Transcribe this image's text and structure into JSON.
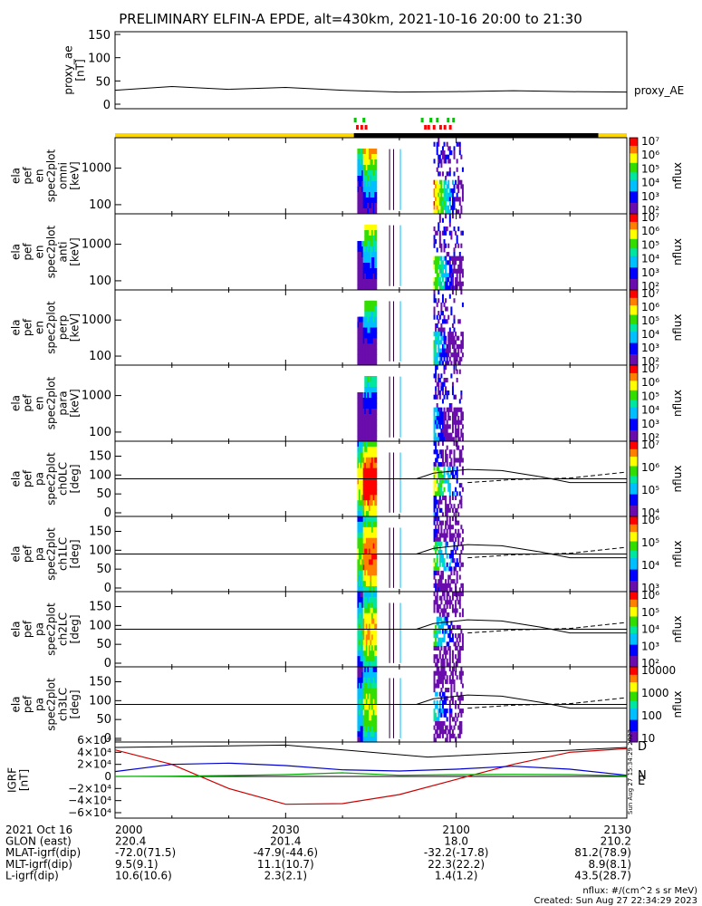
{
  "title": "PRELIMINARY ELFIN-A EPDE, alt=430km, 2021-10-16 20:00 to 21:30",
  "colors": {
    "axis": "#000000",
    "sunlit_bar": "#ffd700",
    "eclipse_bar": "#000000",
    "flag_green": "#00c800",
    "flag_red": "#ff0000",
    "bfield_D": "#cc0000",
    "bfield_N": "#0000cc",
    "bfield_E": "#00aa00"
  },
  "time_axis": {
    "start": "2000",
    "end": "2130",
    "tick_labels": [
      "2000",
      "2030",
      "2100",
      "2130"
    ]
  },
  "proxy_ae": {
    "ylabel": "proxy_ae\n[nT]",
    "yticks": [
      "0",
      "50",
      "100",
      "150"
    ],
    "label": "proxy_AE"
  },
  "status_bar": {
    "green_flags": [
      0.0,
      0.08,
      0.62,
      0.7,
      0.76,
      0.86,
      0.91
    ],
    "red_flags": [
      0.02,
      0.06,
      0.1,
      0.65,
      0.68,
      0.73,
      0.79,
      0.83,
      0.88
    ]
  },
  "energy_panels": [
    {
      "ylabel": "ela\npef\nen\nspec2plot\nomni\n[keV]",
      "yticks": [
        "100",
        "1000"
      ]
    },
    {
      "ylabel": "ela\npef\nen\nspec2plot\nanti\n[keV]",
      "yticks": [
        "100",
        "1000"
      ]
    },
    {
      "ylabel": "ela\npef\nen\nspec2plot\nperp\n[keV]",
      "yticks": [
        "100",
        "1000"
      ]
    },
    {
      "ylabel": "ela\npef\nen\nspec2plot\npara\n[keV]",
      "yticks": [
        "100",
        "1000"
      ]
    }
  ],
  "energy_colorbar": {
    "label": "nflux",
    "ticks": [
      "10²",
      "10³",
      "10⁴",
      "10⁵",
      "10⁶",
      "10⁷"
    ]
  },
  "pa_panels": [
    {
      "ylabel": "ela\npef\npa\nspec2plot\nch0LC\n[deg]",
      "yticks": [
        "0",
        "50",
        "100",
        "150"
      ],
      "cbar_ticks": [
        "10⁴",
        "10⁵",
        "10⁶",
        "10⁷"
      ]
    },
    {
      "ylabel": "ela\npef\npa\nspec2plot\nch1LC\n[deg]",
      "yticks": [
        "0",
        "50",
        "100",
        "150"
      ],
      "cbar_ticks": [
        "10³",
        "10⁴",
        "10⁵",
        "10⁶"
      ]
    },
    {
      "ylabel": "ela\npef\npa\nspec2plot\nch2LC\n[deg]",
      "yticks": [
        "0",
        "50",
        "100",
        "150"
      ],
      "cbar_ticks": [
        "10²",
        "10³",
        "10⁴",
        "10⁵",
        "10⁶"
      ]
    },
    {
      "ylabel": "ela\npef\npa\nspec2plot\nch3LC\n[deg]",
      "yticks": [
        "0",
        "50",
        "100",
        "150"
      ],
      "cbar_ticks": [
        "10",
        "100",
        "1000",
        "10000"
      ]
    }
  ],
  "pa_colorbar_label": "nflux",
  "bfield": {
    "ylabel": "IGRF\n[nT]",
    "yticks": [
      "6×10⁴",
      "4×10⁴",
      "2×10⁴",
      "0",
      "−2×10⁴",
      "−4×10⁴",
      "−6×10⁴"
    ],
    "legend": [
      "D",
      "N",
      "E"
    ],
    "side_stamp": "Sun Aug 27 15:34:29 2023"
  },
  "orbit_table": {
    "rows": [
      {
        "label": "2021 Oct 16",
        "values": [
          "2000",
          "2030",
          "2100",
          "2130"
        ]
      },
      {
        "label": "GLON (east)",
        "values": [
          "220.4",
          "201.4",
          "18.0",
          "210.2"
        ]
      },
      {
        "label": "MLAT-igrf(dip)",
        "values": [
          "-72.0(71.5)",
          "-47.9(-44.6)",
          "-32.2(-17.8)",
          "81.2(78.9)"
        ]
      },
      {
        "label": "MLT-igrf(dip)",
        "values": [
          "9.5(9.1)",
          "11.1(10.7)",
          "22.3(22.2)",
          "8.9(8.1)"
        ]
      },
      {
        "label": "L-igrf(dip)",
        "values": [
          "10.6(10.6)",
          "2.3(2.1)",
          "1.4(1.2)",
          "43.5(28.7)"
        ]
      }
    ]
  },
  "footer": {
    "units": "nflux: #/(cm^2 s sr MeV)",
    "created": "Created: Sun Aug 27 22:34:29 2023"
  },
  "chart_data": {
    "type": "heatmap",
    "title": "PRELIMINARY ELFIN-A EPDE, alt=430km, 2021-10-16 20:00 to 21:30",
    "x_range": [
      "20:00",
      "21:30"
    ],
    "series": [
      {
        "name": "proxy_AE",
        "x_minutes": [
          0,
          10,
          20,
          30,
          40,
          50,
          60,
          70,
          80,
          90
        ],
        "values": [
          30,
          38,
          32,
          36,
          30,
          26,
          27,
          29,
          27,
          26
        ],
        "ylim": [
          0,
          150
        ]
      },
      {
        "name": "D",
        "x_minutes": [
          0,
          10,
          20,
          30,
          40,
          50,
          60,
          70,
          80,
          90
        ],
        "values": [
          44000,
          20000,
          -20000,
          -46000,
          -45000,
          -30000,
          -5000,
          20000,
          40000,
          46000
        ]
      },
      {
        "name": "N",
        "x_minutes": [
          0,
          10,
          20,
          30,
          40,
          50,
          60,
          70,
          80,
          90
        ],
        "values": [
          8000,
          20000,
          22000,
          18000,
          11000,
          9000,
          12000,
          17000,
          12000,
          2000
        ]
      },
      {
        "name": "E",
        "x_minutes": [
          0,
          10,
          20,
          30,
          40,
          50,
          60,
          70,
          80,
          90
        ],
        "values": [
          0,
          500,
          1500,
          3000,
          6000,
          2000,
          3000,
          3500,
          3000,
          1000
        ]
      }
    ],
    "spectrogram_bursts_minutes": [
      [
        42.6,
        45.6
      ],
      [
        56.0,
        61.0
      ]
    ],
    "energy_ylim_keV": [
      60,
      6000
    ],
    "pa_ylim_deg": [
      0,
      180
    ]
  }
}
